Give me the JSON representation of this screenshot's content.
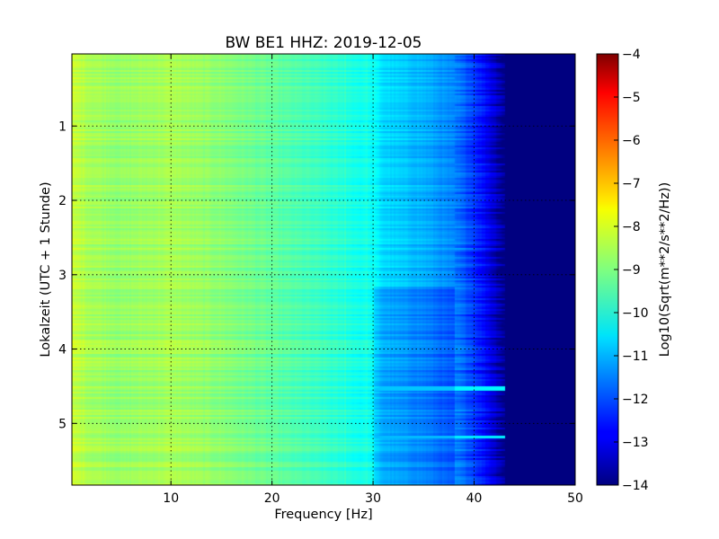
{
  "chart_data": {
    "type": "heatmap",
    "title": "BW BE1 HHZ: 2019-12-05",
    "xlabel": "Frequency [Hz]",
    "ylabel": "Lokalzeit (UTC + 1 Stunde)",
    "xlim": [
      0.2,
      50
    ],
    "ylim": [
      5.83,
      0.03
    ],
    "x_ticks": [
      10,
      20,
      30,
      40,
      50
    ],
    "y_ticks": [
      1,
      2,
      3,
      4,
      5
    ],
    "grid": true,
    "colormap": "jet",
    "colorbar": {
      "label": "Log10(Sqrt(m**2/s**2/Hz))",
      "range": [
        -14,
        -4
      ],
      "ticks": [
        -4,
        -5,
        -6,
        -7,
        -8,
        -9,
        -10,
        -11,
        -12,
        -13,
        -14
      ]
    },
    "frequency_profile": {
      "x": [
        0.2,
        2,
        5,
        10,
        15,
        20,
        25,
        30,
        31,
        33,
        35,
        38,
        40,
        42,
        43,
        50
      ],
      "values": [
        -8.3,
        -8.6,
        -8.8,
        -8.6,
        -8.9,
        -9.3,
        -9.7,
        -10.2,
        -10.6,
        -10.8,
        -11.0,
        -11.5,
        -12.2,
        -13.2,
        -14.0,
        -14.0
      ]
    },
    "features": [
      {
        "type": "quiet_band",
        "time_range": [
          4.5,
          4.56
        ],
        "freq_range": [
          30,
          44
        ],
        "value": -10.3
      },
      {
        "type": "quiet_band",
        "time_range": [
          5.16,
          5.2
        ],
        "freq_range": [
          30,
          44
        ],
        "value": -10.4
      },
      {
        "type": "step",
        "time": 3.15,
        "freq_range": [
          30,
          38
        ],
        "delta": -0.5
      },
      {
        "type": "line",
        "freq": 27.2,
        "delta": 0.25
      },
      {
        "type": "line",
        "freq": 29.3,
        "delta": 0.2
      }
    ]
  }
}
